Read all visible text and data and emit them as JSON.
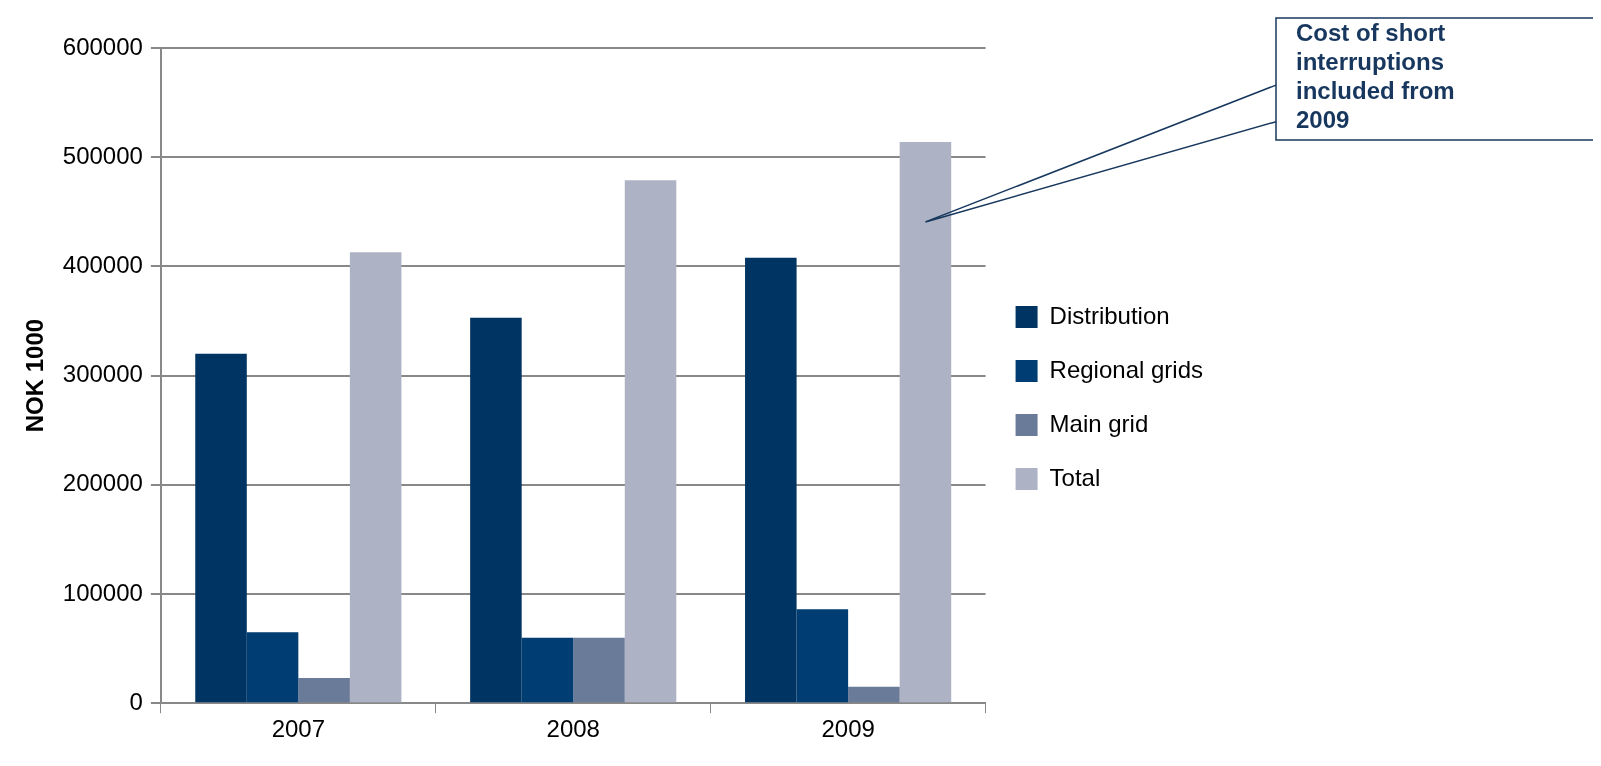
{
  "chart_data": {
    "type": "bar",
    "ylabel": "NOK 1000",
    "categories": [
      "2007",
      "2008",
      "2009"
    ],
    "series": [
      {
        "name": "Distribution",
        "color": "#003462",
        "values": [
          320000,
          353000,
          408000
        ]
      },
      {
        "name": "Regional grids",
        "color": "#003d73",
        "values": [
          65000,
          60000,
          86000
        ]
      },
      {
        "name": "Main grid",
        "color": "#6a7a99",
        "values": [
          23000,
          60000,
          15000
        ]
      },
      {
        "name": "Total",
        "color": "#adb3c4",
        "values": [
          413000,
          479000,
          514000
        ]
      }
    ],
    "ylim": [
      0,
      600000
    ],
    "yticks": [
      0,
      100000,
      200000,
      300000,
      400000,
      500000,
      600000
    ],
    "grid": "y",
    "legend": "right",
    "annotations": [
      "Cost of short interruptions included from 2009"
    ]
  }
}
